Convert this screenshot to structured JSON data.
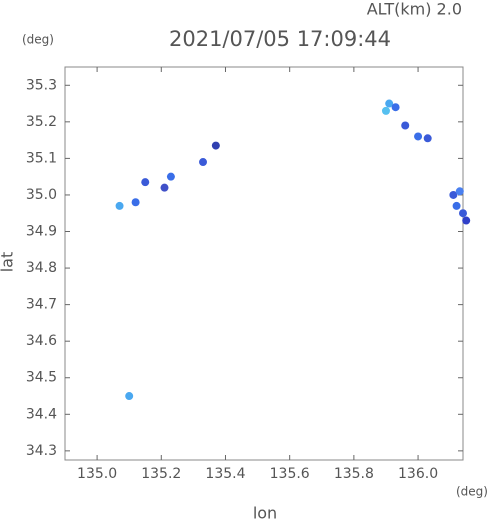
{
  "chart_data": {
    "type": "scatter",
    "title": "2021/07/05 17:09:44",
    "subtitle": "ALT(km) 2.0",
    "x_label": "lon",
    "y_label": "lat",
    "x_unit": "(deg)",
    "y_unit": "(deg)",
    "x": [
      135.07,
      135.12,
      135.15,
      135.23,
      135.21,
      135.33,
      135.37,
      135.1,
      135.91,
      135.93,
      135.9,
      135.96,
      136.0,
      136.03,
      136.11,
      136.12,
      136.14,
      136.15,
      136.13
    ],
    "values": [
      34.97,
      34.98,
      35.035,
      35.05,
      35.02,
      35.09,
      35.135,
      34.45,
      35.25,
      35.24,
      35.23,
      35.19,
      35.16,
      35.155,
      35.0,
      34.97,
      34.95,
      34.93,
      35.01
    ],
    "colors": [
      "#4aa8f0",
      "#3a6ee8",
      "#3a5ad8",
      "#3a6ee8",
      "#4050c8",
      "#3a5ad8",
      "#3040b0",
      "#4aa8f0",
      "#4aa8f0",
      "#3a6ee8",
      "#56c0f0",
      "#3a5ad8",
      "#3a6ee8",
      "#3a5ad8",
      "#3a5ad8",
      "#3a6ee8",
      "#3a5ad8",
      "#3040c8",
      "#4a80f0"
    ],
    "xlim": [
      134.9,
      136.14
    ],
    "ylim": [
      34.275,
      35.35
    ],
    "xticks": [
      {
        "value": 135,
        "label": "135.0"
      },
      135.2,
      135.4,
      135.6,
      135.8,
      {
        "value": 136,
        "label": "136.0"
      }
    ],
    "yticks": [
      34.3,
      34.4,
      34.5,
      34.6,
      34.7,
      34.8,
      34.9,
      {
        "value": 35,
        "label": "35.0"
      },
      35.1,
      35.2,
      35.3
    ]
  }
}
